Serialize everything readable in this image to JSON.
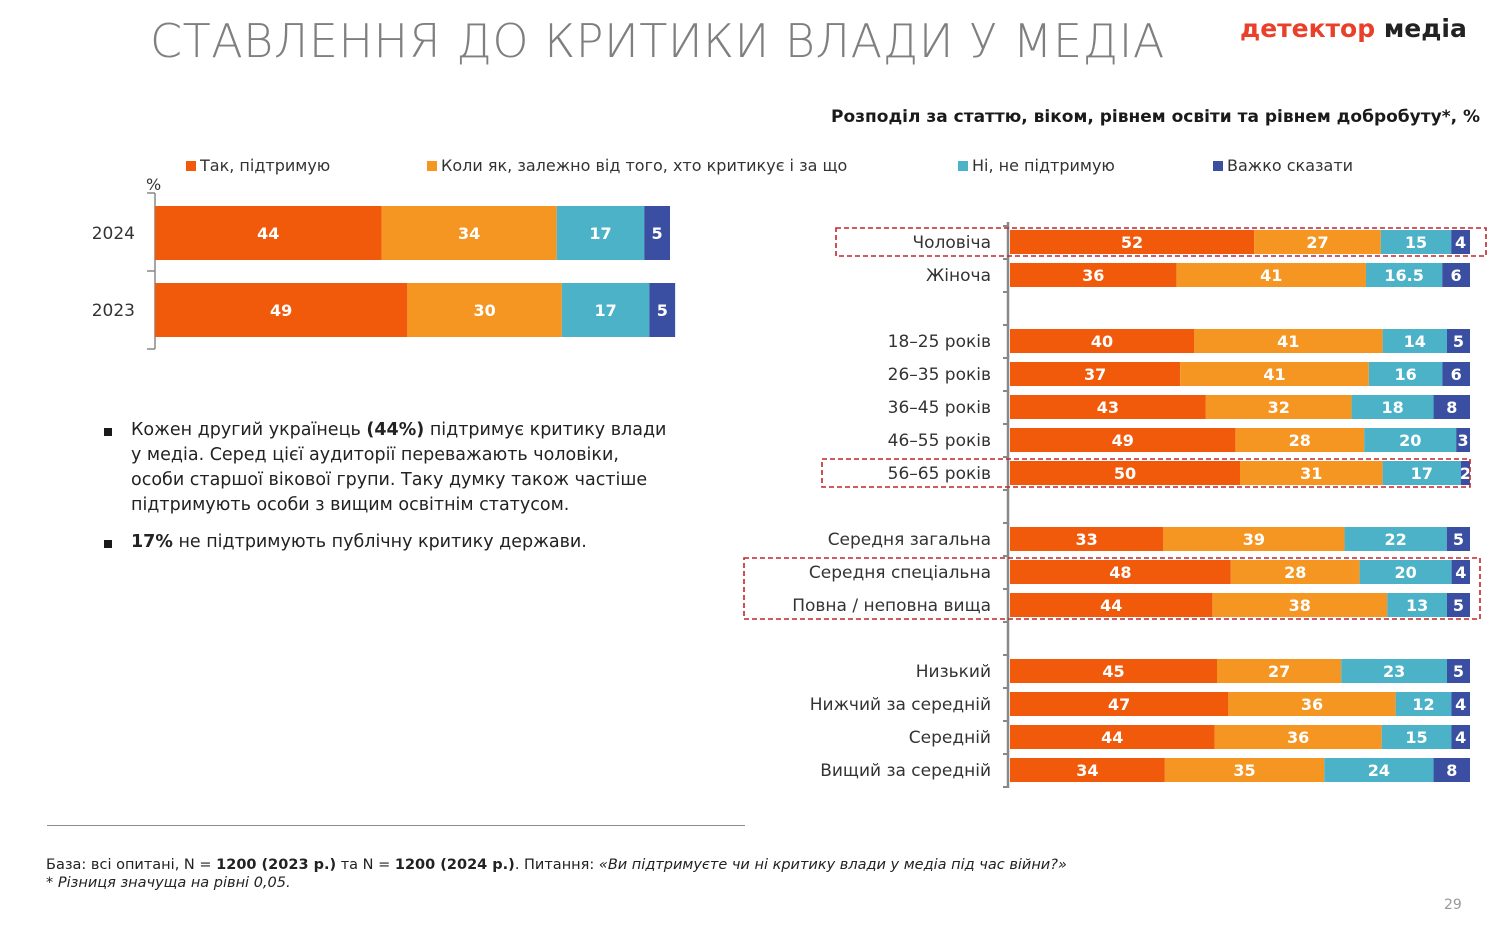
{
  "title": "СТАВЛЕННЯ ДО КРИТИКИ ВЛАДИ У МЕДІА",
  "logo": {
    "part1": "детектор",
    "part2": " медіа"
  },
  "subtitle": "Розподіл за статтю, віком, рівнем освіти та рівнем добробуту*, %",
  "legend": [
    {
      "label": "Так, підтримую",
      "color": "#f05a0a"
    },
    {
      "label": "Коли як, залежно від того, хто критикує і за що",
      "color": "#f59622"
    },
    {
      "label": "Ні, не підтримую",
      "color": "#4bb2c8"
    },
    {
      "label": "Важко сказати",
      "color": "#3b4fa2"
    }
  ],
  "chart_data": [
    {
      "type": "bar",
      "orientation": "horizontal",
      "stacked": true,
      "unit_label": "%",
      "categories": [
        "2024",
        "2023"
      ],
      "series": [
        {
          "name": "Так, підтримую",
          "values": [
            44,
            49
          ]
        },
        {
          "name": "Коли як, залежно від того, хто критикує і за що",
          "values": [
            34,
            30
          ]
        },
        {
          "name": "Ні, не підтримую",
          "values": [
            17,
            17
          ]
        },
        {
          "name": "Важко сказати",
          "values": [
            5,
            5
          ]
        }
      ]
    },
    {
      "type": "bar",
      "orientation": "horizontal",
      "stacked": true,
      "title": "Розподіл за статтю, віком, рівнем освіти та рівнем добробуту*, %",
      "categories": [
        "Чоловіча",
        "Жіноча",
        "18–25 років",
        "26–35 років",
        "36–45 років",
        "46–55 років",
        "56–65 років",
        "Середня загальна",
        "Середня спеціальна",
        "Повна / неповна вища",
        "Низький",
        "Нижчий за середній",
        "Середній",
        "Вищий за середній"
      ],
      "groups": [
        [
          "Чоловіча",
          "Жіноча"
        ],
        [
          "18–25 років",
          "26–35 років",
          "36–45 років",
          "46–55 років",
          "56–65 років"
        ],
        [
          "Середня загальна",
          "Середня спеціальна",
          "Повна / неповна вища"
        ],
        [
          "Низький",
          "Нижчий за середній",
          "Середній",
          "Вищий за середній"
        ]
      ],
      "highlighted": [
        "Чоловіча",
        "56–65 років",
        "Середня спеціальна",
        "Повна / неповна вища"
      ],
      "series": [
        {
          "name": "Так, підтримую",
          "values": [
            52,
            36,
            40,
            37,
            43,
            49,
            50,
            33,
            48,
            44,
            45,
            47,
            44,
            34
          ]
        },
        {
          "name": "Коли як, залежно від того, хто критикує і за що",
          "values": [
            27,
            41,
            41,
            41,
            32,
            28,
            31,
            39,
            28,
            38,
            27,
            36,
            36,
            35
          ]
        },
        {
          "name": "Ні, не підтримую",
          "values": [
            15,
            16.5,
            14,
            16,
            18,
            20,
            17,
            22,
            20,
            13,
            23,
            12,
            15,
            24
          ]
        },
        {
          "name": "Важко сказати",
          "values": [
            4,
            6,
            5,
            6,
            8,
            3,
            2,
            5,
            4,
            5,
            5,
            4,
            4,
            8
          ]
        }
      ]
    }
  ],
  "bullets": [
    {
      "pre": "Кожен другий українець ",
      "bold": "(44%)",
      "post": " підтримує критику влади у медіа. Серед цієї аудиторії переважають чоловіки, особи старшої вікової групи. Таку думку також частіше підтримують особи з вищим освітнім статусом."
    },
    {
      "pre": "",
      "bold": "17%",
      "post": " не підтримують публічну критику держави."
    }
  ],
  "footnote": {
    "base_prefix": "База: всі опитані, N = ",
    "n2023": "1200 (2023 р.)",
    "mid": " та N = ",
    "n2024": "1200 (2024 р.)",
    "question_prefix": ". Питання: ",
    "question": "«Ви підтримуєте чи ні критику влади у медіа під час війни?»",
    "note": "* Різниця значуща на рівні 0,05."
  },
  "page_number": "29"
}
